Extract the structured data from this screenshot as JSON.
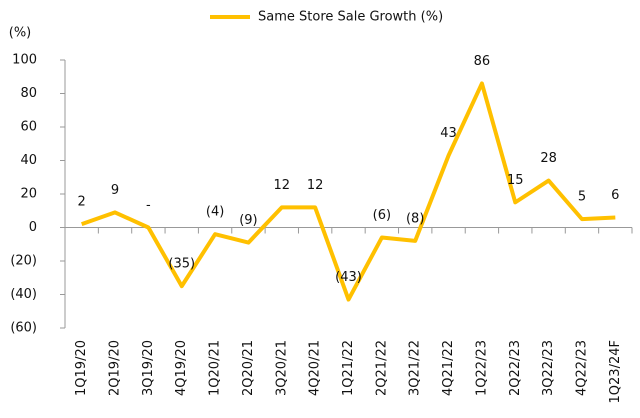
{
  "chart_data": {
    "type": "line",
    "legend": "Same Store Sale Growth (%)",
    "y_axis_label": "(%)",
    "categories": [
      "1Q19/20",
      "2Q19/20",
      "3Q19/20",
      "4Q19/20",
      "1Q20/21",
      "2Q20/21",
      "3Q20/21",
      "4Q20/21",
      "1Q21/22",
      "2Q21/22",
      "3Q21/22",
      "4Q21/22",
      "1Q22/23",
      "2Q22/23",
      "3Q22/23",
      "4Q22/23",
      "1Q23/24F"
    ],
    "series": [
      {
        "name": "Same Store Sale Growth (%)",
        "color": "#ffc000",
        "values": [
          2,
          9,
          0,
          -35,
          -4,
          -9,
          12,
          12,
          -43,
          -6,
          -8,
          43,
          86,
          15,
          28,
          5,
          6
        ],
        "value_labels": [
          "2",
          "9",
          "-",
          "(35)",
          "(4)",
          "(9)",
          "12",
          "12",
          "(43)",
          "(6)",
          "(8)",
          "43",
          "86",
          "15",
          "28",
          "5",
          "6"
        ]
      }
    ],
    "ylim": [
      -60,
      100
    ],
    "yticks": [
      {
        "value": -60,
        "label": "(60)"
      },
      {
        "value": -40,
        "label": "(40)"
      },
      {
        "value": -20,
        "label": "(20)"
      },
      0,
      20,
      40,
      60,
      80,
      100
    ],
    "legend_position": "top"
  }
}
